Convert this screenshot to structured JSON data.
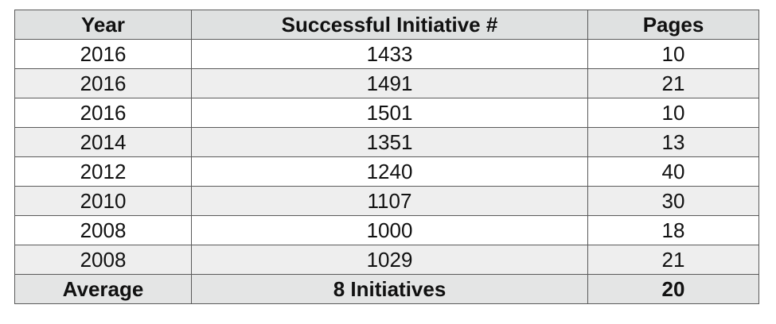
{
  "table": {
    "header": [
      "Year",
      "Successful Initiative #",
      "Pages"
    ],
    "rows": [
      [
        2016,
        1433,
        10
      ],
      [
        2016,
        1491,
        21
      ],
      [
        2016,
        1501,
        10
      ],
      [
        2014,
        1351,
        13
      ],
      [
        2012,
        1240,
        40
      ],
      [
        2010,
        1107,
        30
      ],
      [
        2008,
        1000,
        18
      ],
      [
        2008,
        1029,
        21
      ]
    ],
    "footer": [
      "Average",
      "8 Initiatives",
      20
    ]
  }
}
